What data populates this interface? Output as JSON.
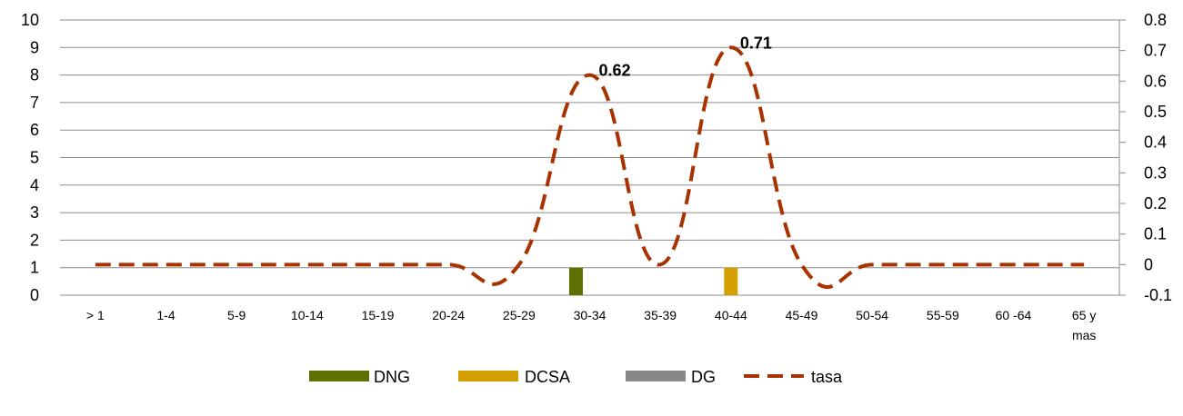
{
  "chart_data": {
    "type": "bar",
    "categories": [
      "> 1",
      "1-4",
      "5-9",
      "10-14",
      "15-19",
      "20-24",
      "25-29",
      "30-34",
      "35-39",
      "40-44",
      "45-49",
      "50-54",
      "55-59",
      "60 -64",
      "65 y mas"
    ],
    "category_lines": [
      [
        "> 1"
      ],
      [
        "1-4"
      ],
      [
        "5-9"
      ],
      [
        "10-14"
      ],
      [
        "15-19"
      ],
      [
        "20-24"
      ],
      [
        "25-29"
      ],
      [
        "30-34"
      ],
      [
        "35-39"
      ],
      [
        "40-44"
      ],
      [
        "45-49"
      ],
      [
        "50-54"
      ],
      [
        "55-59"
      ],
      [
        "60 -64"
      ],
      [
        "65 y",
        "mas"
      ]
    ],
    "series": [
      {
        "name": "DNG",
        "type": "bar",
        "axis": "left",
        "color": "#5f7000",
        "values": [
          0,
          0,
          0,
          0,
          0,
          0,
          0,
          1,
          0,
          0,
          0,
          0,
          0,
          0,
          0
        ]
      },
      {
        "name": "DCSA",
        "type": "bar",
        "axis": "left",
        "color": "#d4a000",
        "values": [
          0,
          0,
          0,
          0,
          0,
          0,
          0,
          0,
          0,
          1,
          0,
          0,
          0,
          0,
          0
        ]
      },
      {
        "name": "DG",
        "type": "bar",
        "axis": "left",
        "color": "#888888",
        "values": [
          0,
          0,
          0,
          0,
          0,
          0,
          0,
          0,
          0,
          0,
          0,
          0,
          0,
          0,
          0
        ]
      },
      {
        "name": "tasa",
        "type": "line",
        "axis": "right",
        "style": "dashed",
        "color": "#a93300",
        "values": [
          0,
          0,
          0,
          0,
          0,
          0,
          0,
          0.62,
          0,
          0.71,
          0,
          0,
          0,
          0,
          0
        ]
      }
    ],
    "data_labels": [
      {
        "series": "tasa",
        "category": "30-34",
        "text": "0.62"
      },
      {
        "series": "tasa",
        "category": "40-44",
        "text": "0.71"
      }
    ],
    "y_left": {
      "min": 0,
      "max": 10,
      "ticks": [
        "0",
        "1",
        "2",
        "3",
        "4",
        "5",
        "6",
        "7",
        "8",
        "9",
        "10"
      ]
    },
    "y_right": {
      "min": -0.1,
      "max": 0.8,
      "ticks": [
        "-0.1",
        "0",
        "0.1",
        "0.2",
        "0.3",
        "0.4",
        "0.5",
        "0.6",
        "0.7",
        "0.8"
      ]
    },
    "grid": true,
    "legend": {
      "position": "bottom",
      "entries": [
        "DNG",
        "DCSA",
        "DG",
        "tasa"
      ]
    },
    "title": "",
    "xlabel": "",
    "ylabel": ""
  }
}
